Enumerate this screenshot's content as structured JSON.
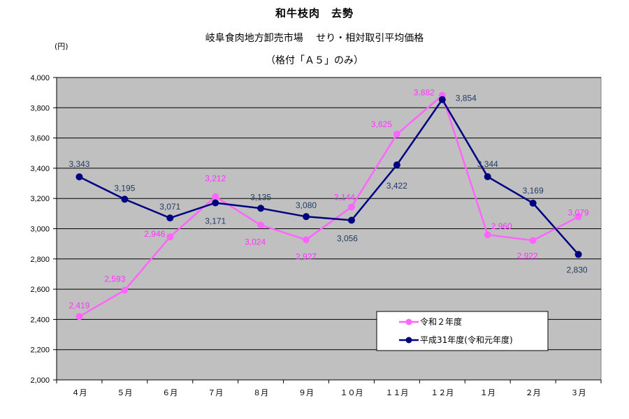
{
  "header": {
    "title": "和牛枝肉　去勢",
    "subtitle": "岐阜食肉地方卸売市場　 せり・相対取引平均価格",
    "subtitle2": "（格付「Ａ５」のみ）",
    "unit": "(円)"
  },
  "colors": {
    "plot_bg": "#c0c0c0",
    "series_r2": "#ff66ff",
    "series_h31": "#000080"
  },
  "chart_data": {
    "type": "line",
    "title": "和牛枝肉　去勢",
    "subtitle": "岐阜食肉地方卸売市場　 せり・相対取引平均価格（格付「Ａ５」のみ）",
    "ylabel": "(円)",
    "xlabel": "",
    "categories": [
      "４月",
      "５月",
      "６月",
      "７月",
      "８月",
      "９月",
      "１０月",
      "１１月",
      "１２月",
      "１月",
      "２月",
      "３月"
    ],
    "ylim": [
      2000,
      4000
    ],
    "yticks": [
      2000,
      2200,
      2400,
      2600,
      2800,
      3000,
      3200,
      3400,
      3600,
      3800,
      4000
    ],
    "ytick_labels": [
      "2,000",
      "2,200",
      "2,400",
      "2,600",
      "2,800",
      "3,000",
      "3,200",
      "3,400",
      "3,600",
      "3,800",
      "4,000"
    ],
    "grid": true,
    "legend_position": "bottom-right",
    "series": [
      {
        "name": "令和２年度",
        "color": "#ff66ff",
        "values": [
          2419,
          2593,
          2946,
          3212,
          3024,
          2927,
          3144,
          3625,
          3882,
          2960,
          2922,
          3079
        ],
        "labels": [
          "2,419",
          "2,593",
          "2,946",
          "3,212",
          "3,024",
          "2,927",
          "3,144",
          "3,625",
          "3,882",
          "2,960",
          "2,922",
          "3,079"
        ]
      },
      {
        "name": "平成31年度(令和元年度)",
        "color": "#000080",
        "values": [
          3343,
          3195,
          3071,
          3171,
          3135,
          3080,
          3056,
          3422,
          3854,
          3344,
          3169,
          2830
        ],
        "labels": [
          "3,343",
          "3,195",
          "3,071",
          "3,171",
          "3,135",
          "3,080",
          "3,056",
          "3,422",
          "3,854",
          "3,344",
          "3,169",
          "2,830"
        ]
      }
    ]
  }
}
